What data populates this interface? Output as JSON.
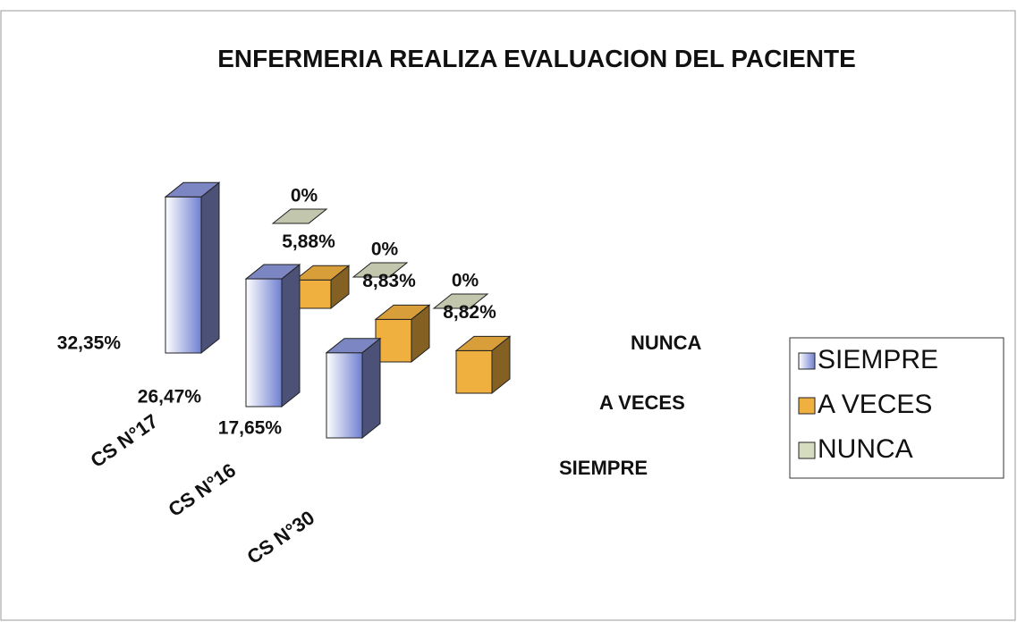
{
  "chart_data": {
    "type": "bar3d",
    "title": "ENFERMERIA REALIZA EVALUACION DEL PACIENTE",
    "categories": [
      "CS N°17",
      "CS N°16",
      "CS N°30"
    ],
    "series": [
      {
        "name": "SIEMPRE",
        "color": "#8a95d8",
        "values": [
          32.35,
          26.47,
          17.65
        ],
        "value_labels": [
          "32,35%",
          "26,47%",
          "17,65%"
        ]
      },
      {
        "name": "A VECES",
        "color": "#f0b040",
        "values": [
          5.88,
          8.83,
          8.82
        ],
        "value_labels": [
          "5,88%",
          "8,83%",
          "8,82%"
        ]
      },
      {
        "name": "NUNCA",
        "color": "#d6dcc0",
        "values": [
          0,
          0,
          0
        ],
        "value_labels": [
          "0%",
          "0%",
          "0%"
        ]
      }
    ],
    "legend": "right"
  }
}
